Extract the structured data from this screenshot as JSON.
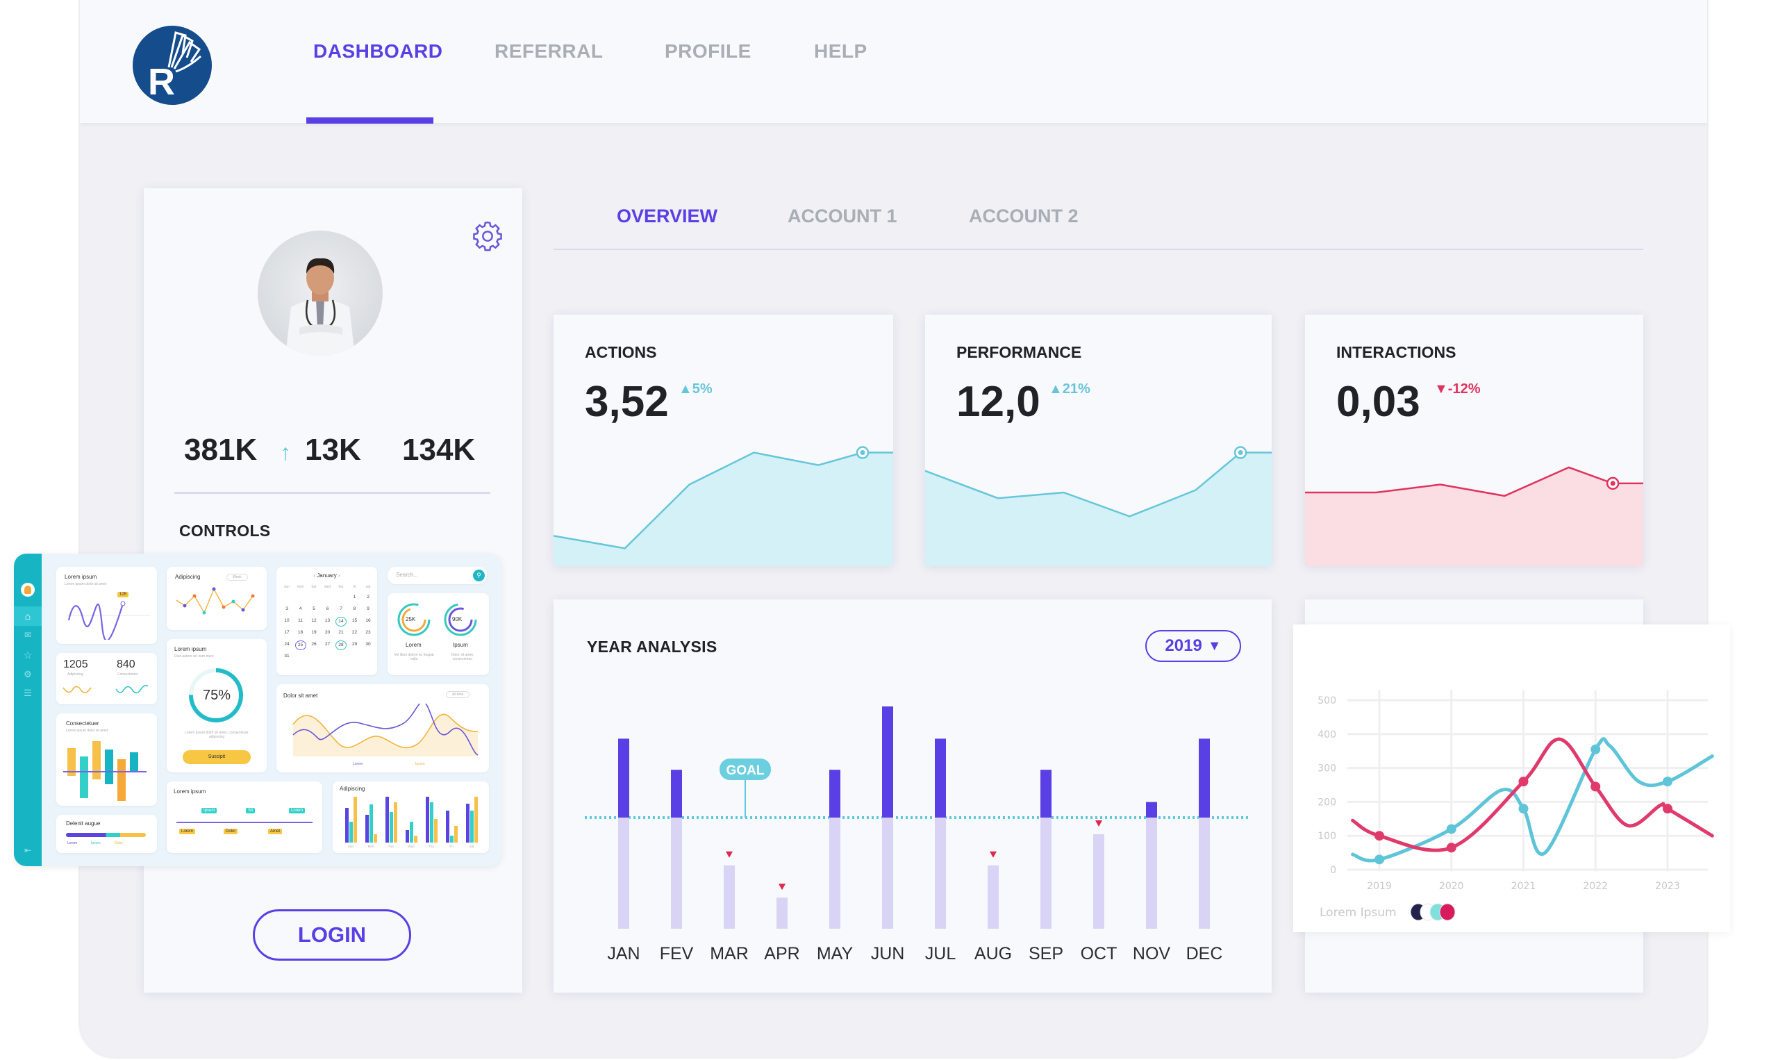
{
  "header": {
    "logo_letter": "R",
    "nav": [
      {
        "label": "DASHBOARD",
        "active": true
      },
      {
        "label": "REFERRAL",
        "active": false
      },
      {
        "label": "PROFILE",
        "active": false
      },
      {
        "label": "HELP",
        "active": false
      }
    ]
  },
  "profile": {
    "stats": [
      "381K",
      "13K",
      "134K"
    ],
    "stat_arrow": "↑",
    "controls_label": "CONTROLS",
    "login_label": "LOGIN"
  },
  "tabs": [
    {
      "label": "OVERVIEW",
      "active": true
    },
    {
      "label": "ACCOUNT 1",
      "active": false
    },
    {
      "label": "ACCOUNT 2",
      "active": false
    }
  ],
  "kpis": [
    {
      "title": "ACTIONS",
      "value": "3,52",
      "delta": "▲5%",
      "trend": "up",
      "spark": [
        16,
        5,
        61,
        89,
        78,
        89,
        89
      ],
      "color": "#66c6d9",
      "fill": "#d3f1f7"
    },
    {
      "title": "PERFORMANCE",
      "value": "12,0",
      "delta": "▲21%",
      "trend": "up",
      "spark": [
        73,
        49,
        54,
        33,
        56,
        89,
        89
      ],
      "color": "#66c6d9",
      "fill": "#d3f1f7"
    },
    {
      "title": "INTERACTIONS",
      "value": "0,03",
      "delta": "▼-12%",
      "trend": "down",
      "spark": [
        54,
        54,
        61,
        51,
        76,
        62,
        62
      ],
      "color": "#e0335e",
      "fill": "#fbdde4"
    }
  ],
  "colors": {
    "accent": "#5a3fe4",
    "teal": "#5ec8dc",
    "pink": "#e0336a",
    "bar_light": "#d9d3f5"
  },
  "year_analysis": {
    "title": "YEAR ANALYSIS",
    "year_select": "2019",
    "goal_label": "GOAL"
  },
  "chart_data": [
    {
      "type": "bar",
      "title": "YEAR ANALYSIS",
      "categories": [
        "JAN",
        "FEV",
        "MAR",
        "APR",
        "MAY",
        "JUN",
        "JUL",
        "AUG",
        "SEP",
        "OCT",
        "NOV",
        "DEC"
      ],
      "values": [
        171,
        143,
        57,
        28,
        143,
        200,
        171,
        57,
        143,
        85,
        114,
        171
      ],
      "goal": 100,
      "below_goal_markers": [
        "MAR",
        "APR",
        "AUG",
        "OCT"
      ],
      "ylim": [
        0,
        210
      ]
    },
    {
      "type": "line",
      "x_ticks": [
        "2019",
        "2020",
        "2021",
        "2022",
        "2023"
      ],
      "y_ticks": [
        "0",
        "100",
        "200",
        "300",
        "400",
        "500"
      ],
      "ylim": [
        0,
        500
      ],
      "grid": true,
      "legend_title": "Lorem Ipsum",
      "legend_swatches": [
        "#22224a",
        "#ffffff",
        "#7fe0dc",
        "#d81b5a"
      ],
      "series": [
        {
          "name": "pink",
          "color": "#df3a6b",
          "x": [
            2018.63,
            2019,
            2020,
            2021,
            2021.5,
            2022,
            2022.45,
            2022.9,
            2023,
            2023.62
          ],
          "y": [
            145,
            100,
            65,
            260,
            385,
            245,
            130,
            190,
            180,
            100
          ],
          "markers": [
            2019,
            2020,
            2021,
            2022,
            2023
          ]
        },
        {
          "name": "cyan",
          "color": "#5ec4d8",
          "x": [
            2018.63,
            2019,
            2020,
            2020.7,
            2021,
            2021.3,
            2022,
            2022.2,
            2022.6,
            2023,
            2023.62
          ],
          "y": [
            45,
            30,
            120,
            235,
            180,
            50,
            355,
            365,
            260,
            260,
            335
          ],
          "markers": [
            2019,
            2020,
            2021,
            2022,
            2023
          ]
        }
      ]
    }
  ],
  "mini": {
    "card_wave": {
      "title": "Lorem ipsum",
      "sub": "Lorem ipsum dolor sit amet",
      "badge": "125"
    },
    "card_line": {
      "title": "Adipiscing",
      "select": "Week"
    },
    "calendar": {
      "month": "January",
      "days": [
        "sun",
        "mon",
        "tue",
        "wed",
        "thu",
        "fri",
        "sat"
      ],
      "start_offset": 5,
      "count": 31,
      "circled_teal": [
        14,
        28
      ],
      "circled_purple": [
        25
      ]
    },
    "search": {
      "placeholder": "Search..."
    },
    "gauges": [
      {
        "value": "25K",
        "label": "Lorem",
        "sub": "Vel illum dolore eu feugiat nulla"
      },
      {
        "value": "90K",
        "label": "Ipsum",
        "sub": "Dolor sit amet, consectetuer"
      }
    ],
    "numbers": [
      {
        "value": "1205",
        "label": "Adipiscing"
      },
      {
        "value": "840",
        "label": "Consectetuer"
      }
    ],
    "progress": {
      "title": "Lorem ipsum",
      "sub": "Duis autem vel eum iriure",
      "value": "75%",
      "desc": "Lorem ipsum dolor sit amet, consectetuer adipiscing",
      "button": "Suscipit"
    },
    "area": {
      "title": "Dolor sit amet",
      "select": "All time",
      "legend": [
        "Lorem",
        "Ipsum"
      ]
    },
    "bars": {
      "title": "Consectetuer",
      "sub": "Lorem ipsum dolor sit amet"
    },
    "delenit": {
      "title": "Delenit augue",
      "legend": [
        "Lorem",
        "Ipsum",
        "Dolor"
      ]
    },
    "timeline": {
      "title": "Lorem ipsum",
      "top": [
        "Ipsum",
        "Sit",
        "Lorem"
      ],
      "bottom": [
        "Lorem",
        "Dolor",
        "Amet"
      ]
    },
    "groupbars": {
      "title": "Adipiscing",
      "days": [
        "Sun",
        "Mon",
        "Tue",
        "Wed",
        "Thu",
        "Fri",
        "Sat"
      ]
    }
  }
}
